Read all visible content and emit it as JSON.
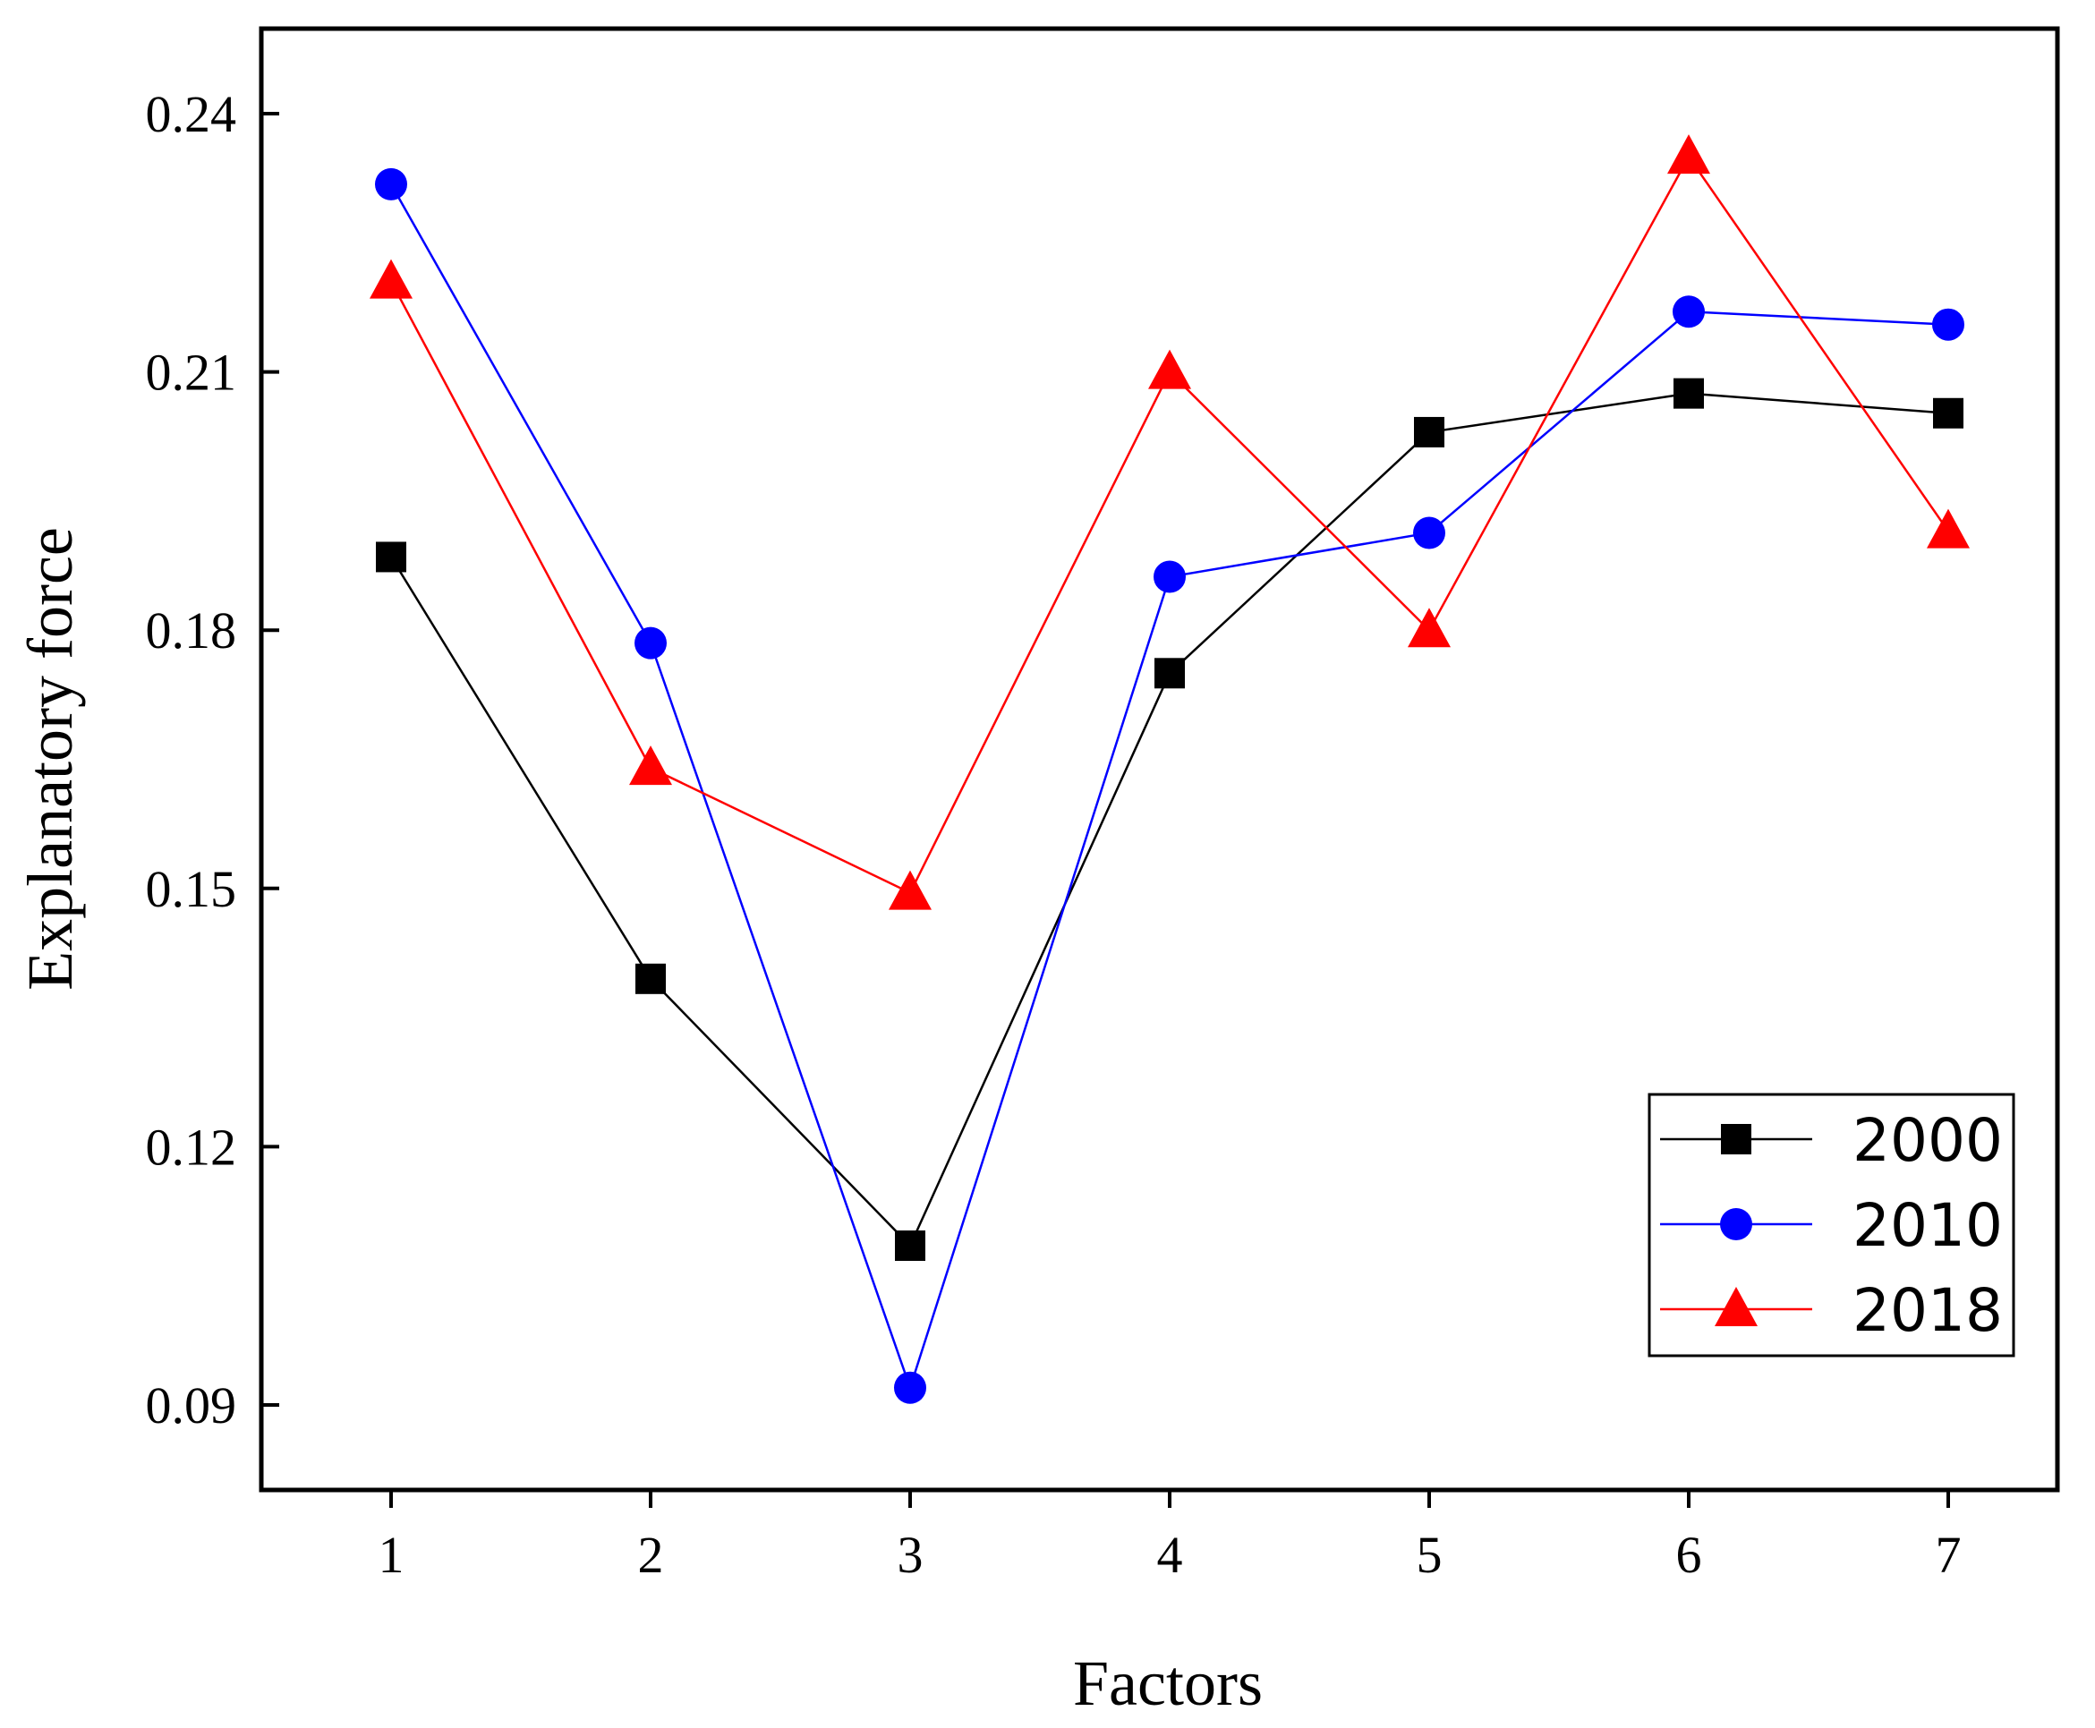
{
  "chart_data": {
    "type": "line",
    "title": "",
    "xlabel": "Factors",
    "ylabel": "Explanatory force",
    "x": [
      1,
      2,
      3,
      4,
      5,
      6,
      7
    ],
    "xlim": [
      0.5,
      7.5
    ],
    "ylim": [
      0.08,
      0.25
    ],
    "yticks": [
      0.09,
      0.12,
      0.15,
      0.18,
      0.21,
      0.24
    ],
    "ytick_labels": [
      "0.09",
      "0.12",
      "0.15",
      "0.18",
      "0.21",
      "0.24"
    ],
    "xtick_labels": [
      "1",
      "2",
      "3",
      "4",
      "5",
      "6",
      "7"
    ],
    "grid": false,
    "legend_position": "bottom-right",
    "series": [
      {
        "name": "2000",
        "color": "#000000",
        "marker": "square",
        "values": [
          0.1885,
          0.1395,
          0.1085,
          0.175,
          0.203,
          0.2075,
          0.2052
        ]
      },
      {
        "name": "2010",
        "color": "#0000ff",
        "marker": "circle",
        "values": [
          0.2318,
          0.1785,
          0.092,
          0.1862,
          0.1913,
          0.217,
          0.2155
        ]
      },
      {
        "name": "2018",
        "color": "#ff0000",
        "marker": "triangle",
        "values": [
          0.2205,
          0.164,
          0.1495,
          0.21,
          0.18,
          0.235,
          0.1915
        ]
      }
    ]
  }
}
